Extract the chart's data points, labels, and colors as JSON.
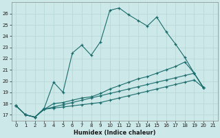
{
  "xlabel": "Humidex (Indice chaleur)",
  "bg_color": "#cce8e8",
  "grid_color": "#b8d8d8",
  "line_color": "#1a6b6b",
  "xlim": [
    -0.5,
    21.5
  ],
  "ylim": [
    16.5,
    27.0
  ],
  "yticks": [
    17,
    18,
    19,
    20,
    21,
    22,
    23,
    24,
    25,
    26
  ],
  "xticks": [
    0,
    1,
    2,
    3,
    4,
    5,
    6,
    7,
    8,
    9,
    10,
    11,
    12,
    13,
    14,
    15,
    16,
    17,
    18,
    19,
    20,
    21
  ],
  "series": [
    [
      17.8,
      17.0,
      16.8,
      17.6,
      19.9,
      19.0,
      22.5,
      23.2,
      22.3,
      23.5,
      26.3,
      26.5,
      25.9,
      25.4,
      24.9,
      25.7,
      24.4,
      23.3,
      22.1,
      20.7,
      19.4
    ],
    [
      17.8,
      17.0,
      16.8,
      17.5,
      18.0,
      18.1,
      18.3,
      18.5,
      18.6,
      18.9,
      19.3,
      19.6,
      19.9,
      20.2,
      20.4,
      20.7,
      21.0,
      21.3,
      21.7,
      20.7,
      19.4
    ],
    [
      17.8,
      17.0,
      16.8,
      17.5,
      17.7,
      17.9,
      18.1,
      18.3,
      18.5,
      18.7,
      18.9,
      19.1,
      19.3,
      19.5,
      19.7,
      19.9,
      20.1,
      20.3,
      20.5,
      20.7,
      19.4
    ],
    [
      17.8,
      17.0,
      16.8,
      17.5,
      17.6,
      17.7,
      17.8,
      17.9,
      18.0,
      18.1,
      18.3,
      18.5,
      18.7,
      18.9,
      19.1,
      19.3,
      19.5,
      19.7,
      19.9,
      20.1,
      19.4
    ]
  ]
}
